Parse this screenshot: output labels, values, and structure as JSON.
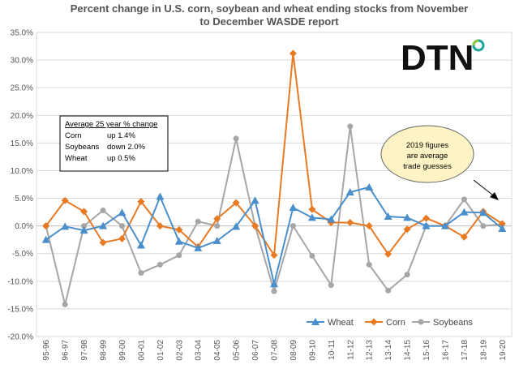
{
  "chart_data": {
    "type": "line",
    "title_lines": [
      "Percent change in U.S. corn, soybean and wheat ending stocks from November",
      "to December WASDE report"
    ],
    "categories": [
      "95-96",
      "96-97",
      "97-98",
      "98-99",
      "99-00",
      "00-01",
      "01-02",
      "02-03",
      "03-04",
      "04-05",
      "05-06",
      "06-07",
      "07-08",
      "08-09",
      "09-10",
      "10-11",
      "11-12",
      "12-13",
      "13-14",
      "14-15",
      "15-16",
      "16-17",
      "17-18",
      "18-19",
      "19-20"
    ],
    "ylim": [
      -20,
      35
    ],
    "yticks": [
      -20,
      -15,
      -10,
      -5,
      0,
      5,
      10,
      15,
      20,
      25,
      30,
      35
    ],
    "ytick_labels": [
      "-20.0%",
      "-15.0%",
      "-10.0%",
      "-5.0%",
      "0.0%",
      "5.0%",
      "10.0%",
      "15.0%",
      "20.0%",
      "25.0%",
      "30.0%",
      "35.0%"
    ],
    "series": [
      {
        "name": "Wheat",
        "color": "#4a8fcc",
        "marker": "triangle",
        "values": [
          -2.5,
          -0.1,
          -0.8,
          0.0,
          2.4,
          -3.5,
          5.3,
          -2.8,
          -4.0,
          -2.7,
          -0.1,
          4.6,
          -10.5,
          3.3,
          1.5,
          1.2,
          6.1,
          7.0,
          1.7,
          1.5,
          0.0,
          0.0,
          2.5,
          2.4,
          -0.5
        ]
      },
      {
        "name": "Corn",
        "color": "#e87a24",
        "marker": "diamond",
        "values": [
          0.0,
          4.6,
          2.6,
          -3.0,
          -2.3,
          4.4,
          0.0,
          -0.7,
          -3.8,
          1.3,
          4.2,
          0.0,
          -5.3,
          31.2,
          3.0,
          0.6,
          0.6,
          0.0,
          -5.1,
          -0.6,
          1.4,
          0.0,
          -2.0,
          2.6,
          0.4
        ]
      },
      {
        "name": "Soybeans",
        "color": "#a6a6a6",
        "marker": "circle",
        "values": [
          0.0,
          -14.2,
          0.0,
          2.8,
          0.0,
          -8.5,
          -7.0,
          -5.3,
          0.8,
          0.0,
          15.8,
          0.0,
          -11.8,
          0.0,
          -5.4,
          -10.7,
          18.0,
          -7.0,
          -11.7,
          -8.8,
          0.0,
          0.0,
          4.8,
          0.0,
          0.3
        ]
      }
    ],
    "grid": true,
    "legend_position": "bottom-right"
  },
  "infobox": {
    "heading": "Average 25 year % change",
    "rows": [
      {
        "label": "Corn",
        "value": "up 1.4%"
      },
      {
        "label": "Soybeans",
        "value": "down 2.0%"
      },
      {
        "label": "Wheat",
        "value": "up 0.5%"
      }
    ]
  },
  "annotation": {
    "lines": [
      "2019 figures",
      "are average",
      "trade guesses"
    ],
    "fill": "#fdf3c4"
  },
  "logo": {
    "text": "DTN",
    "colors": [
      "#1a1a1a",
      "#1ea59a",
      "#8dc63f"
    ]
  }
}
